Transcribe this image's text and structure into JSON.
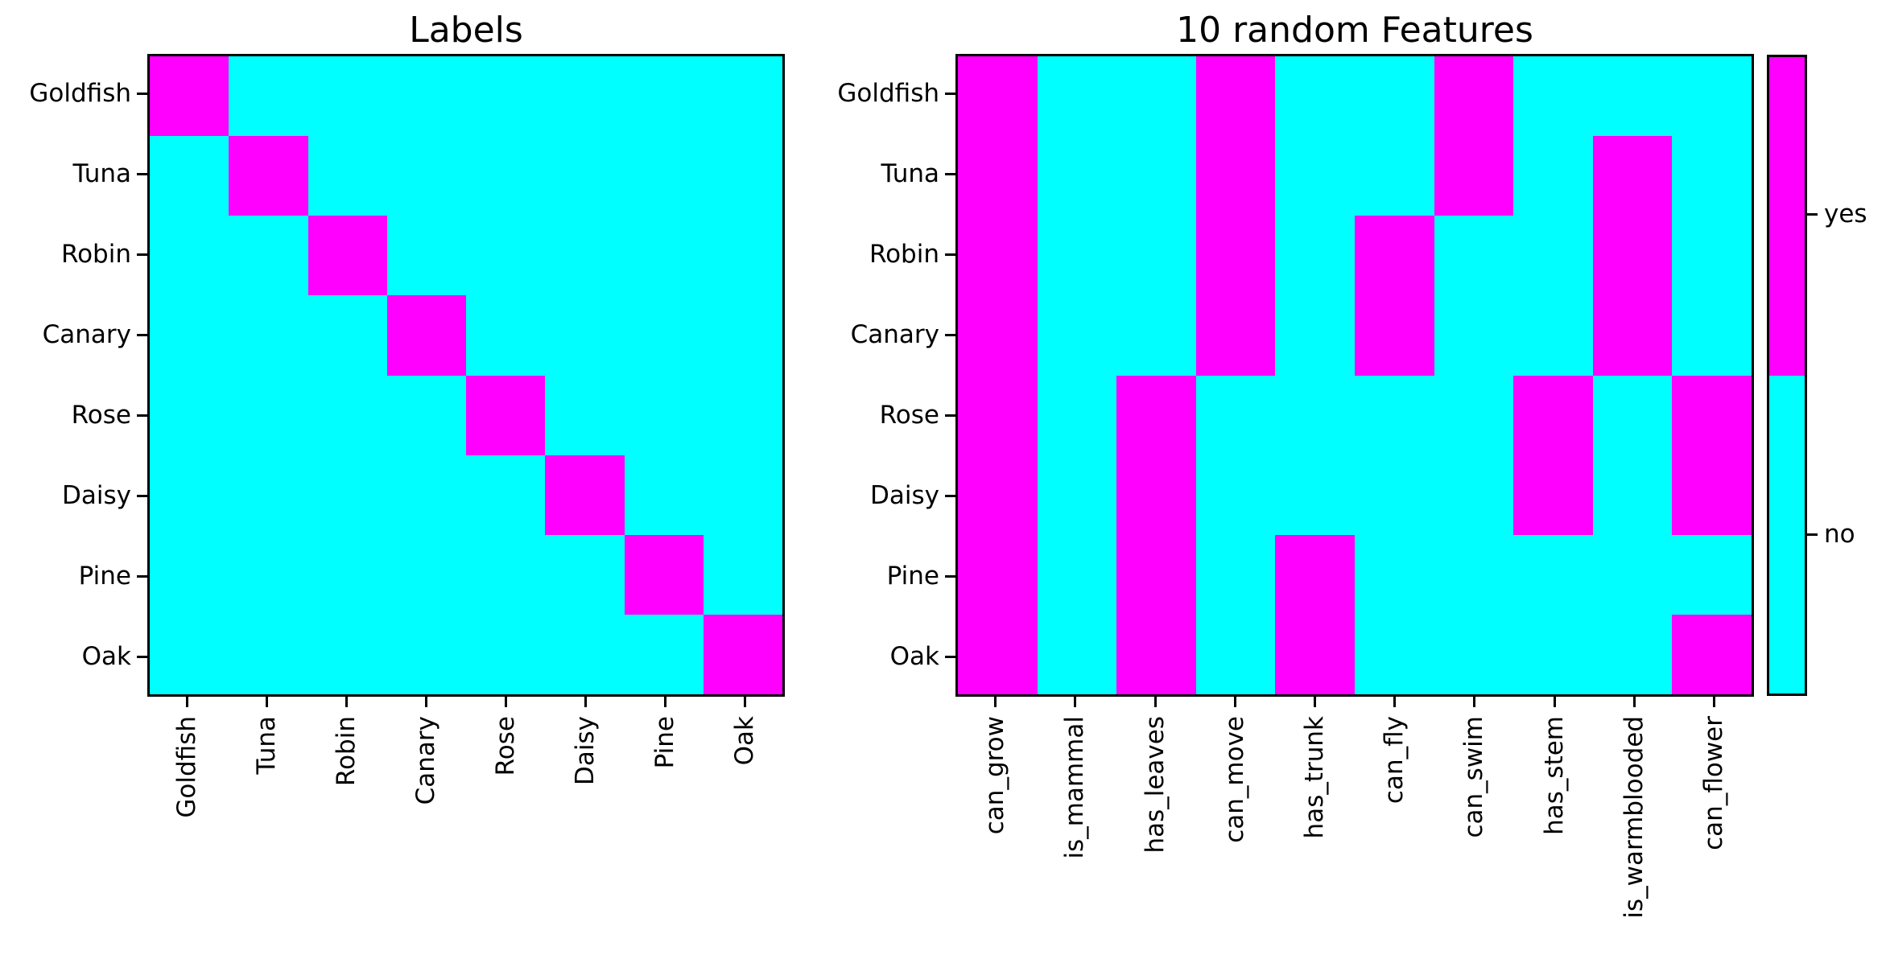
{
  "accent_colors": {
    "yes": "#ff00ff",
    "no": "#00ffff",
    "axis": "#000000",
    "background": "#ffffff"
  },
  "chart_data": [
    {
      "type": "heatmap",
      "title": "Labels",
      "rows": [
        "Goldfish",
        "Tuna",
        "Robin",
        "Canary",
        "Rose",
        "Daisy",
        "Pine",
        "Oak"
      ],
      "columns": [
        "Goldfish",
        "Tuna",
        "Robin",
        "Canary",
        "Rose",
        "Daisy",
        "Pine",
        "Oak"
      ],
      "values": [
        [
          1,
          0,
          0,
          0,
          0,
          0,
          0,
          0
        ],
        [
          0,
          1,
          0,
          0,
          0,
          0,
          0,
          0
        ],
        [
          0,
          0,
          1,
          0,
          0,
          0,
          0,
          0
        ],
        [
          0,
          0,
          0,
          1,
          0,
          0,
          0,
          0
        ],
        [
          0,
          0,
          0,
          0,
          1,
          0,
          0,
          0
        ],
        [
          0,
          0,
          0,
          0,
          0,
          1,
          0,
          0
        ],
        [
          0,
          0,
          0,
          0,
          0,
          0,
          1,
          0
        ],
        [
          0,
          0,
          0,
          0,
          0,
          0,
          0,
          1
        ]
      ],
      "value_meaning": {
        "1": "yes",
        "0": "no"
      },
      "colors": {
        "yes": "#ff00ff",
        "no": "#00ffff"
      },
      "grid": false,
      "x_tick_rotation": 90
    },
    {
      "type": "heatmap",
      "title": "10 random Features",
      "rows": [
        "Goldfish",
        "Tuna",
        "Robin",
        "Canary",
        "Rose",
        "Daisy",
        "Pine",
        "Oak"
      ],
      "columns": [
        "can_grow",
        "is_mammal",
        "has_leaves",
        "can_move",
        "has_trunk",
        "can_fly",
        "can_swim",
        "has_stem",
        "is_warmblooded",
        "can_flower"
      ],
      "values": [
        [
          1,
          0,
          0,
          1,
          0,
          0,
          1,
          0,
          0,
          0
        ],
        [
          1,
          0,
          0,
          1,
          0,
          0,
          1,
          0,
          1,
          0
        ],
        [
          1,
          0,
          0,
          1,
          0,
          1,
          0,
          0,
          1,
          0
        ],
        [
          1,
          0,
          0,
          1,
          0,
          1,
          0,
          0,
          1,
          0
        ],
        [
          1,
          0,
          1,
          0,
          0,
          0,
          0,
          1,
          0,
          1
        ],
        [
          1,
          0,
          1,
          0,
          0,
          0,
          0,
          1,
          0,
          1
        ],
        [
          1,
          0,
          1,
          0,
          1,
          0,
          0,
          0,
          0,
          0
        ],
        [
          1,
          0,
          1,
          0,
          1,
          0,
          0,
          0,
          0,
          1
        ]
      ],
      "value_meaning": {
        "1": "yes",
        "0": "no"
      },
      "colors": {
        "yes": "#ff00ff",
        "no": "#00ffff"
      },
      "grid": false,
      "x_tick_rotation": 90,
      "colorbar": {
        "labels": [
          "yes",
          "no"
        ],
        "position": "right",
        "yes_color": "#ff00ff",
        "no_color": "#00ffff"
      }
    }
  ]
}
